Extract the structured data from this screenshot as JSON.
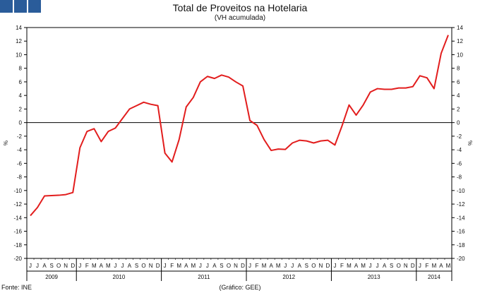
{
  "header": {
    "title": "Total de Proveitos na Hotelaria",
    "subtitle": "(VH acumulada)"
  },
  "footer": {
    "source": "Fonte: INE",
    "credit": "(Gráfico: GEE)"
  },
  "colors": {
    "line": "#e21d1d",
    "logo": "#2a5c9a",
    "axis": "#000000"
  },
  "chart_data": {
    "type": "line",
    "title": "Total de Proveitos na Hotelaria",
    "subtitle": "(VH acumulada)",
    "ylabel_left": "%",
    "ylabel_right": "%",
    "ylim": [
      -20,
      14
    ],
    "yticks": [
      14,
      12,
      10,
      8,
      6,
      4,
      2,
      0,
      -2,
      -4,
      -6,
      -8,
      -10,
      -12,
      -14,
      -16,
      -18,
      -20
    ],
    "grid": false,
    "month_labels": [
      "J",
      "J",
      "A",
      "S",
      "O",
      "N",
      "D",
      "J",
      "F",
      "M",
      "A",
      "M",
      "J",
      "J",
      "A",
      "S",
      "O",
      "N",
      "D",
      "J",
      "F",
      "M",
      "A",
      "M",
      "J",
      "J",
      "A",
      "S",
      "O",
      "N",
      "D",
      "J",
      "F",
      "M",
      "A",
      "M",
      "J",
      "J",
      "A",
      "S",
      "O",
      "N",
      "D",
      "J",
      "F",
      "M",
      "A",
      "M",
      "J",
      "J",
      "A",
      "S",
      "O",
      "N",
      "D",
      "J",
      "F",
      "M",
      "A",
      "M"
    ],
    "years": [
      {
        "label": "2009",
        "months": 7
      },
      {
        "label": "2010",
        "months": 12
      },
      {
        "label": "2011",
        "months": 12
      },
      {
        "label": "2012",
        "months": 12
      },
      {
        "label": "2013",
        "months": 12
      },
      {
        "label": "2014",
        "months": 5
      }
    ],
    "series": [
      {
        "name": "",
        "values": [
          -13.7,
          -12.5,
          -10.8,
          -10.75,
          -10.7,
          -10.6,
          -10.3,
          -3.7,
          -1.3,
          -0.9,
          -2.8,
          -1.3,
          -0.8,
          0.6,
          2.0,
          2.5,
          3.0,
          2.7,
          2.5,
          -4.5,
          -5.8,
          -2.5,
          2.3,
          3.7,
          6.0,
          6.8,
          6.5,
          7.0,
          6.7,
          6.0,
          5.4,
          0.3,
          -0.4,
          -2.5,
          -4.1,
          -3.9,
          -3.95,
          -3.0,
          -2.6,
          -2.7,
          -3.0,
          -2.7,
          -2.6,
          -3.3,
          -0.5,
          2.6,
          1.1,
          2.6,
          4.5,
          5.0,
          4.9,
          4.9,
          5.1,
          5.1,
          5.3,
          6.9,
          6.6,
          5.0,
          10.2,
          12.9
        ]
      }
    ]
  }
}
